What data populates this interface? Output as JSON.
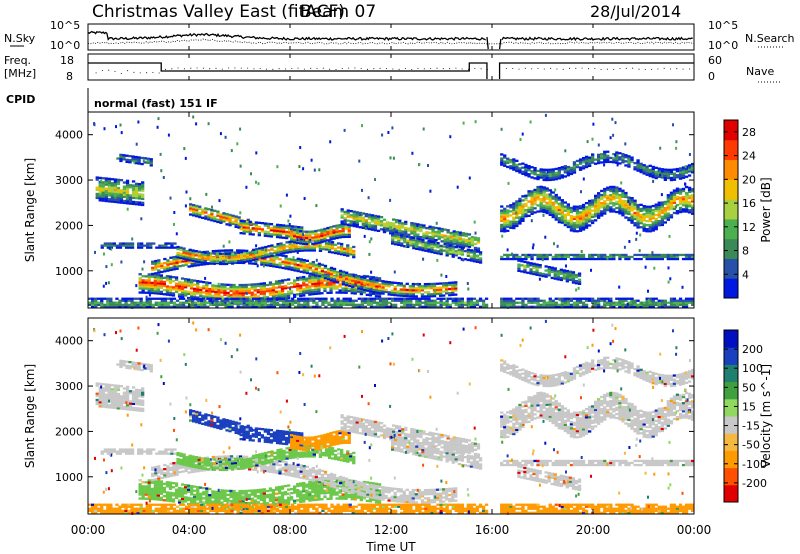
{
  "header": {
    "title": "Christmas Valley East (fitACF)",
    "beam": "Beam 07",
    "date": "28/Jul/2014"
  },
  "nsky_panel": {
    "left_label": "N.Sky",
    "left_ticks": [
      "10^5",
      "10^0"
    ],
    "right_label": "N.Search",
    "right_ticks": [
      "10^5",
      "10^0"
    ]
  },
  "freq_panel": {
    "left_label_1": "Freq.",
    "left_label_2": "[MHz]",
    "left_ticks": [
      "18",
      "8"
    ],
    "right_label": "Nave",
    "right_ticks": [
      "60",
      "0"
    ]
  },
  "cpid": {
    "label": "CPID",
    "value": "normal (fast) 151 IF"
  },
  "colors": {
    "power": [
      "#0018e0",
      "#2850a8",
      "#3a8a58",
      "#4caf50",
      "#a8d040",
      "#f0c000",
      "#ff8c00",
      "#ff3a00",
      "#e00000"
    ],
    "velocity": [
      "#e00000",
      "#ff5000",
      "#ff9a00",
      "#f5b840",
      "#c8c8c8",
      "#90d860",
      "#40a040",
      "#208070",
      "#1a40c0",
      "#0010c0"
    ]
  },
  "chart_data": [
    {
      "type": "heatmap",
      "title": "",
      "ylabel": "Slant Range [km]",
      "ylim": [
        180,
        4500
      ],
      "yticks": [
        "1000",
        "2000",
        "3000",
        "4000"
      ],
      "xlim": [
        "00:00",
        "24:00"
      ],
      "colorbar": {
        "label": "Power [dB]",
        "ticks": [
          "4",
          "8",
          "12",
          "16",
          "20",
          "24",
          "28"
        ],
        "range": [
          0,
          30
        ]
      }
    },
    {
      "type": "heatmap",
      "title": "",
      "ylabel": "Slant Range [km]",
      "ylim": [
        180,
        4500
      ],
      "yticks": [
        "1000",
        "2000",
        "3000",
        "4000"
      ],
      "xlabel": "Time UT",
      "xticks": [
        "00:00",
        "04:00",
        "08:00",
        "12:00",
        "16:00",
        "20:00",
        "00:00"
      ],
      "colorbar": {
        "label": "Velocity [m s^-1]",
        "ticks": [
          "200",
          "100",
          "50",
          "15",
          "-15",
          "-50",
          "-100",
          "-200"
        ]
      }
    }
  ]
}
